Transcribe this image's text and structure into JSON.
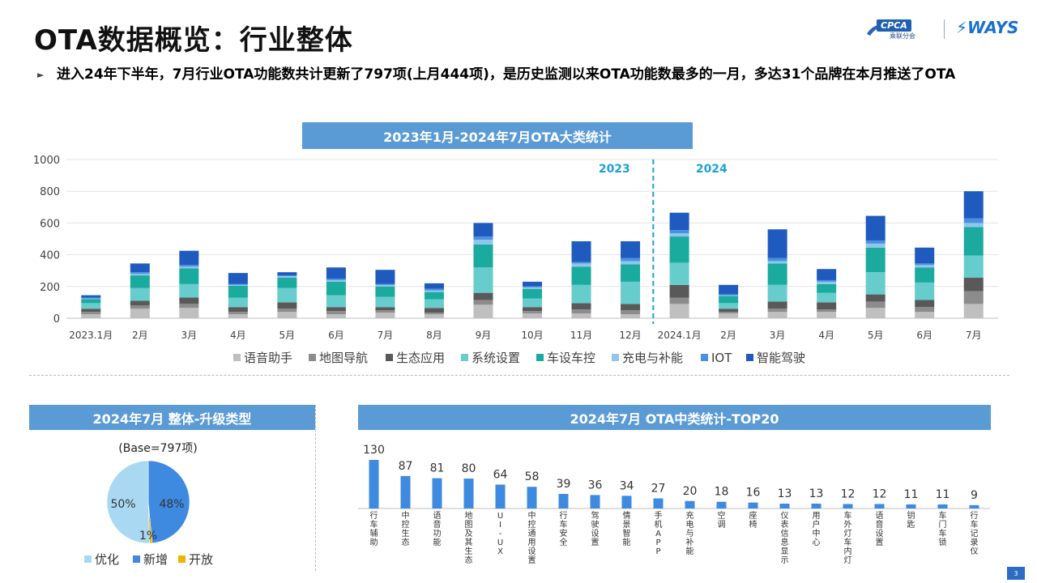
{
  "title": "OTA数据概览：行业整体",
  "logos": {
    "cpca_tag": "CPCA",
    "cpca_cn": "乘联分会",
    "ways": "WAYS"
  },
  "subtitle": "进入24年下半年，7月行业OTA功能数共计更新了797项(上月444项)，是历史监测以来OTA功能数最多的一月，多达31个品牌在本月推送了OTA",
  "page_number": "3",
  "banners": {
    "stacked": "2023年1月-2024年7月OTA大类统计",
    "pie": "2024年7月 整体-升级类型",
    "top20": "2024年7月 OTA中类统计-TOP20"
  },
  "chart_data": [
    {
      "type": "bar",
      "stacked": true,
      "categories": [
        "2023.1月",
        "2月",
        "3月",
        "4月",
        "5月",
        "6月",
        "7月",
        "8月",
        "9月",
        "10月",
        "11月",
        "12月",
        "2024.1月",
        "2月",
        "3月",
        "4月",
        "5月",
        "6月",
        "7月"
      ],
      "year_labels": [
        "2023",
        "2024"
      ],
      "yticks": [
        0,
        200,
        400,
        600,
        800,
        1000
      ],
      "ylim": [
        0,
        1000
      ],
      "legend_position": "bottom",
      "series": [
        {
          "name": "语音助手",
          "color": "#bfbfbf",
          "values": [
            25,
            60,
            65,
            25,
            40,
            25,
            35,
            25,
            85,
            30,
            30,
            25,
            90,
            30,
            40,
            40,
            65,
            40,
            90
          ]
        },
        {
          "name": "地图导航",
          "color": "#8c8c8c",
          "values": [
            15,
            20,
            25,
            15,
            20,
            20,
            15,
            10,
            30,
            15,
            25,
            25,
            40,
            10,
            20,
            15,
            40,
            30,
            80
          ]
        },
        {
          "name": "生态应用",
          "color": "#595959",
          "values": [
            20,
            30,
            40,
            30,
            40,
            25,
            20,
            30,
            45,
            25,
            40,
            40,
            80,
            20,
            45,
            45,
            45,
            45,
            85
          ]
        },
        {
          "name": "系统设置",
          "color": "#66cccc",
          "values": [
            35,
            80,
            85,
            60,
            90,
            75,
            65,
            55,
            160,
            55,
            115,
            140,
            140,
            35,
            105,
            60,
            140,
            110,
            140
          ]
        },
        {
          "name": "车设车控",
          "color": "#1aaa9e",
          "values": [
            25,
            80,
            100,
            75,
            65,
            85,
            65,
            45,
            145,
            60,
            115,
            110,
            165,
            45,
            135,
            55,
            155,
            95,
            180
          ]
        },
        {
          "name": "充电与补能",
          "color": "#8fc6ea",
          "values": [
            5,
            10,
            10,
            5,
            10,
            10,
            10,
            10,
            30,
            10,
            20,
            20,
            20,
            5,
            15,
            15,
            25,
            15,
            25
          ]
        },
        {
          "name": "IOT",
          "color": "#4a90e2",
          "values": [
            5,
            10,
            10,
            5,
            5,
            10,
            5,
            10,
            20,
            5,
            10,
            20,
            20,
            5,
            20,
            10,
            20,
            10,
            30
          ]
        },
        {
          "name": "智能驾驶",
          "color": "#1f5bbf",
          "values": [
            15,
            55,
            90,
            70,
            20,
            70,
            90,
            35,
            85,
            30,
            130,
            105,
            110,
            60,
            180,
            70,
            155,
            100,
            170
          ]
        }
      ]
    },
    {
      "type": "pie",
      "base_label": "(Base=797项)",
      "slices": [
        {
          "name": "优化",
          "value": 50,
          "label": "50%",
          "color": "#a9d8f3"
        },
        {
          "name": "新增",
          "value": 48,
          "label": "48%",
          "color": "#3e8ae0"
        },
        {
          "name": "开放",
          "value": 1,
          "label": "1%",
          "color": "#f1b400"
        }
      ]
    },
    {
      "type": "bar",
      "color": "#3e8ae0",
      "categories": [
        "行车辅助",
        "中控生态",
        "语音功能",
        "地图及其生态",
        "UI-UX",
        "中控通用设置",
        "行车安全",
        "驾驶设置",
        "情景智能",
        "手机APP",
        "充电与补能",
        "空调",
        "座椅",
        "仪表信息显示",
        "用户中心",
        "车外灯车内灯",
        "语音设置",
        "钥匙",
        "车门车锁",
        "行车记录仪"
      ],
      "values": [
        130,
        87,
        81,
        80,
        64,
        58,
        39,
        36,
        34,
        27,
        20,
        18,
        16,
        13,
        13,
        12,
        12,
        11,
        11,
        9
      ]
    }
  ]
}
